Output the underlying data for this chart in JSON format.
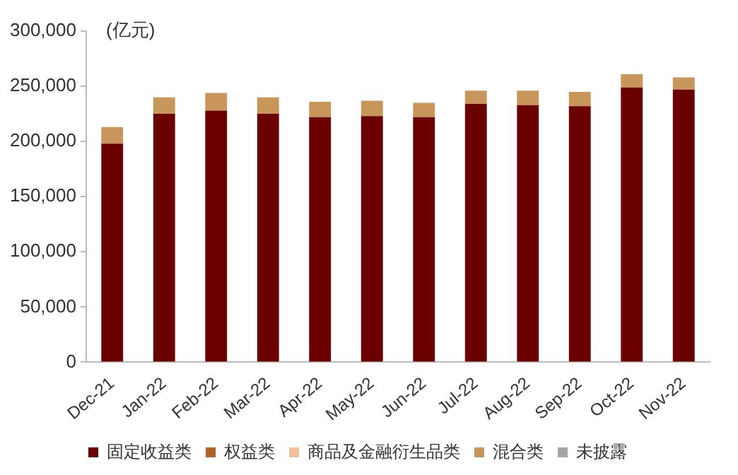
{
  "chart_data": {
    "type": "bar",
    "stacked": true,
    "ylabel": "(亿元)",
    "categories": [
      "Dec-21",
      "Jan-22",
      "Feb-22",
      "Mar-22",
      "Apr-22",
      "May-22",
      "Jun-22",
      "Jul-22",
      "Aug-22",
      "Sep-22",
      "Oct-22",
      "Nov-22"
    ],
    "series": [
      {
        "name": "固定收益类",
        "color": "#6b0000",
        "values": [
          198000,
          225000,
          228000,
          225000,
          222000,
          223000,
          222000,
          234000,
          233000,
          232000,
          249000,
          247000
        ]
      },
      {
        "name": "权益类",
        "color": "#b5622a",
        "values": [
          0,
          0,
          0,
          0,
          0,
          0,
          0,
          0,
          0,
          0,
          0,
          0
        ]
      },
      {
        "name": "商品及金融衍生品类",
        "color": "#f0c09a",
        "values": [
          0,
          0,
          0,
          0,
          0,
          0,
          0,
          0,
          0,
          0,
          0,
          0
        ]
      },
      {
        "name": "混合类",
        "color": "#c8955a",
        "values": [
          15000,
          15000,
          16000,
          15000,
          14000,
          14000,
          13000,
          12000,
          13000,
          13000,
          12000,
          11000
        ]
      },
      {
        "name": "未披露",
        "color": "#a6a6a6",
        "values": [
          0,
          0,
          0,
          0,
          0,
          0,
          0,
          0,
          0,
          0,
          0,
          0
        ]
      }
    ],
    "ylim": [
      0,
      300000
    ],
    "yticks": [
      0,
      {
        "value": 50000,
        "label": "50,000"
      },
      {
        "value": 100000,
        "label": "100,000"
      },
      {
        "value": 150000,
        "label": "150,000"
      },
      {
        "value": 200000,
        "label": "200,000"
      },
      {
        "value": 250000,
        "label": "250,000"
      },
      {
        "value": 300000,
        "label": "300,000"
      }
    ],
    "grid": false,
    "legend": "bottom"
  }
}
